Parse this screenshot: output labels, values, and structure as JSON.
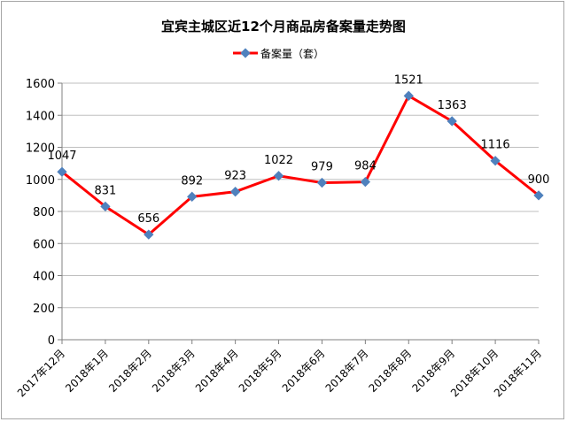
{
  "chart_data": {
    "type": "line",
    "title": "宜宾主城区近12个月商品房备案量走势图",
    "xlabel": "",
    "ylabel": "",
    "categories": [
      "2017年12月",
      "2018年1月",
      "2018年2月",
      "2018年3月",
      "2018年4月",
      "2018年5月",
      "2018年6月",
      "2018年7月",
      "2018年8月",
      "2018年9月",
      "2018年10月",
      "2018年11月"
    ],
    "series": [
      {
        "name": "备案量（套）",
        "values": [
          1047,
          831,
          656,
          892,
          923,
          1022,
          979,
          984,
          1521,
          1363,
          1116,
          900
        ]
      }
    ],
    "ylim": [
      0,
      1600
    ],
    "yticks": [
      0,
      200,
      400,
      600,
      800,
      1000,
      1200,
      1400,
      1600
    ],
    "grid": true,
    "legend": "top-center",
    "colors": {
      "line": "#ff0000",
      "marker": "#4f81bd",
      "grid": "#bfbfbf"
    }
  }
}
